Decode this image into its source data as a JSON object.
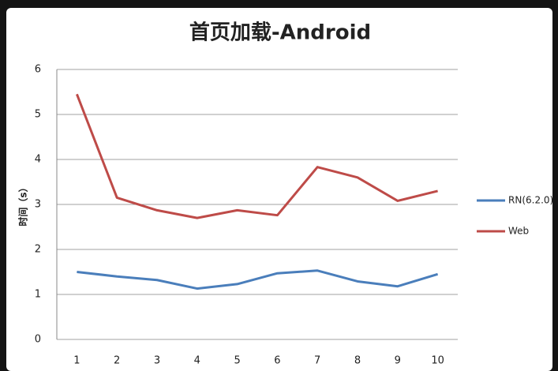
{
  "chart_data": {
    "type": "line",
    "title": "首页加载-Android",
    "y_label": "时间（s）",
    "categories": [
      "1",
      "2",
      "3",
      "4",
      "5",
      "6",
      "7",
      "8",
      "9",
      "10"
    ],
    "series": [
      {
        "name": "RN(6.2.0)",
        "color": "#4a7ebb",
        "values": [
          1.5,
          1.4,
          1.32,
          1.13,
          1.23,
          1.47,
          1.53,
          1.29,
          1.18,
          1.45
        ]
      },
      {
        "name": "Web",
        "color": "#be4b48",
        "values": [
          5.45,
          3.15,
          2.87,
          2.7,
          2.87,
          2.76,
          3.83,
          3.6,
          3.08,
          3.3
        ]
      }
    ],
    "ylim": [
      0,
      6
    ],
    "yticks": [
      0,
      1,
      2,
      3,
      4,
      5,
      6
    ],
    "grid": true,
    "legend": "right"
  }
}
